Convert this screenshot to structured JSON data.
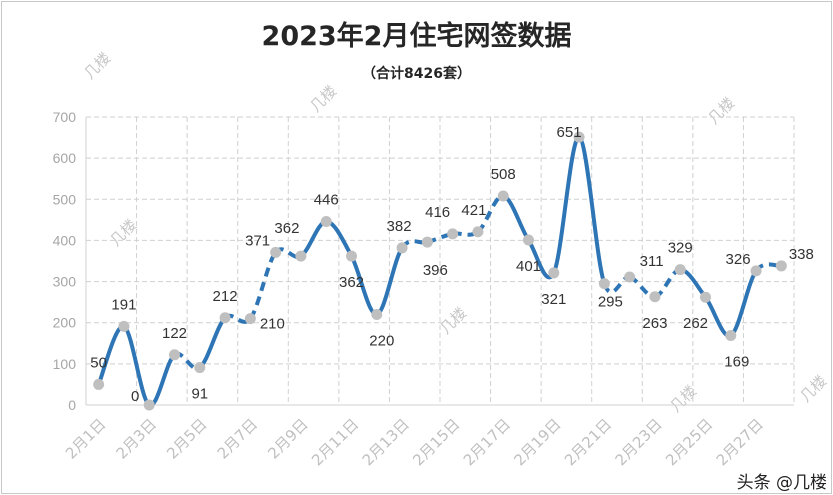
{
  "chart_data": {
    "type": "line",
    "title": "2023年2月住宅网签数据",
    "subtitle": "（合计8426套）",
    "categories": [
      "2月1日",
      "2月2日",
      "2月3日",
      "2月4日",
      "2月5日",
      "2月6日",
      "2月7日",
      "2月8日",
      "2月9日",
      "2月10日",
      "2月11日",
      "2月12日",
      "2月13日",
      "2月14日",
      "2月15日",
      "2月16日",
      "2月17日",
      "2月18日",
      "2月19日",
      "2月20日",
      "2月21日",
      "2月22日",
      "2月23日",
      "2月24日",
      "2月25日",
      "2月26日",
      "2月27日",
      "2月28日"
    ],
    "tick_labels": [
      "2月1日",
      "2月3日",
      "2月5日",
      "2月7日",
      "2月9日",
      "2月11日",
      "2月13日",
      "2月15日",
      "2月17日",
      "2月19日",
      "2月21日",
      "2月23日",
      "2月25日",
      "2月27日"
    ],
    "values": [
      50,
      191,
      0,
      122,
      91,
      212,
      210,
      371,
      362,
      446,
      362,
      220,
      382,
      396,
      416,
      421,
      508,
      401,
      321,
      651,
      295,
      311,
      263,
      329,
      262,
      169,
      326,
      338
    ],
    "ylim": [
      0,
      700
    ],
    "yticks": [
      0,
      100,
      200,
      300,
      400,
      500,
      600,
      700
    ],
    "grid": true,
    "line_color": "#2e75b6",
    "marker_color": "#bfbfbf"
  },
  "watermark": "几楼",
  "credit": "头条 @几楼"
}
